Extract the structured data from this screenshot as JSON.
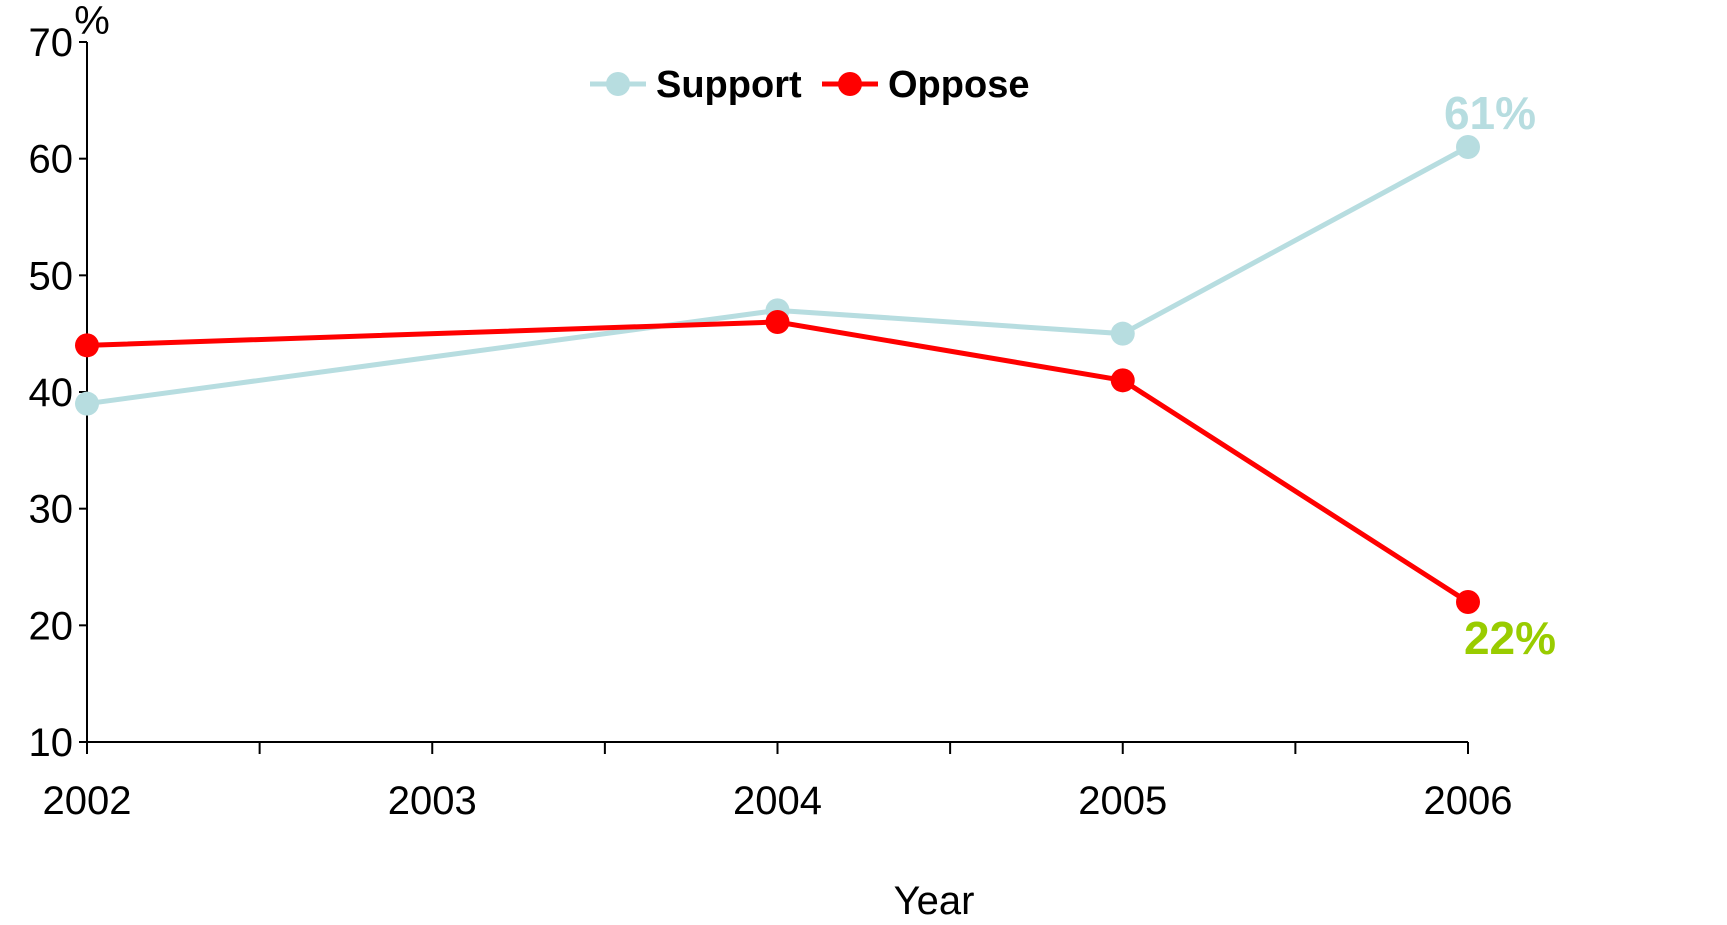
{
  "chart_data": {
    "type": "line",
    "title": "",
    "xlabel": "Year",
    "ylabel": "%",
    "x": [
      2002,
      2003,
      2004,
      2005,
      2006
    ],
    "x_tick_labels": [
      "2002",
      "2003",
      "2004",
      "2005",
      "2006"
    ],
    "y_tick_labels": [
      "10",
      "20",
      "30",
      "40",
      "50",
      "60",
      "70"
    ],
    "ylim": [
      10,
      70
    ],
    "grid": false,
    "legend_position": "top-center",
    "series": [
      {
        "name": "Support",
        "color": "#B7DDE0",
        "x": [
          "2002",
          "2004",
          "2005",
          "2006"
        ],
        "values": [
          39,
          47,
          45,
          61
        ]
      },
      {
        "name": "Oppose",
        "color": "#FF0000",
        "x": [
          "2002",
          "2004",
          "2005",
          "2006"
        ],
        "values": [
          44,
          46,
          41,
          22
        ]
      }
    ],
    "annotations": [
      {
        "text": "61%",
        "series": "Support",
        "x": "2006",
        "color": "#B7DDE0"
      },
      {
        "text": "22%",
        "series": "Oppose",
        "x": "2006",
        "color": "#99CC00"
      }
    ]
  }
}
